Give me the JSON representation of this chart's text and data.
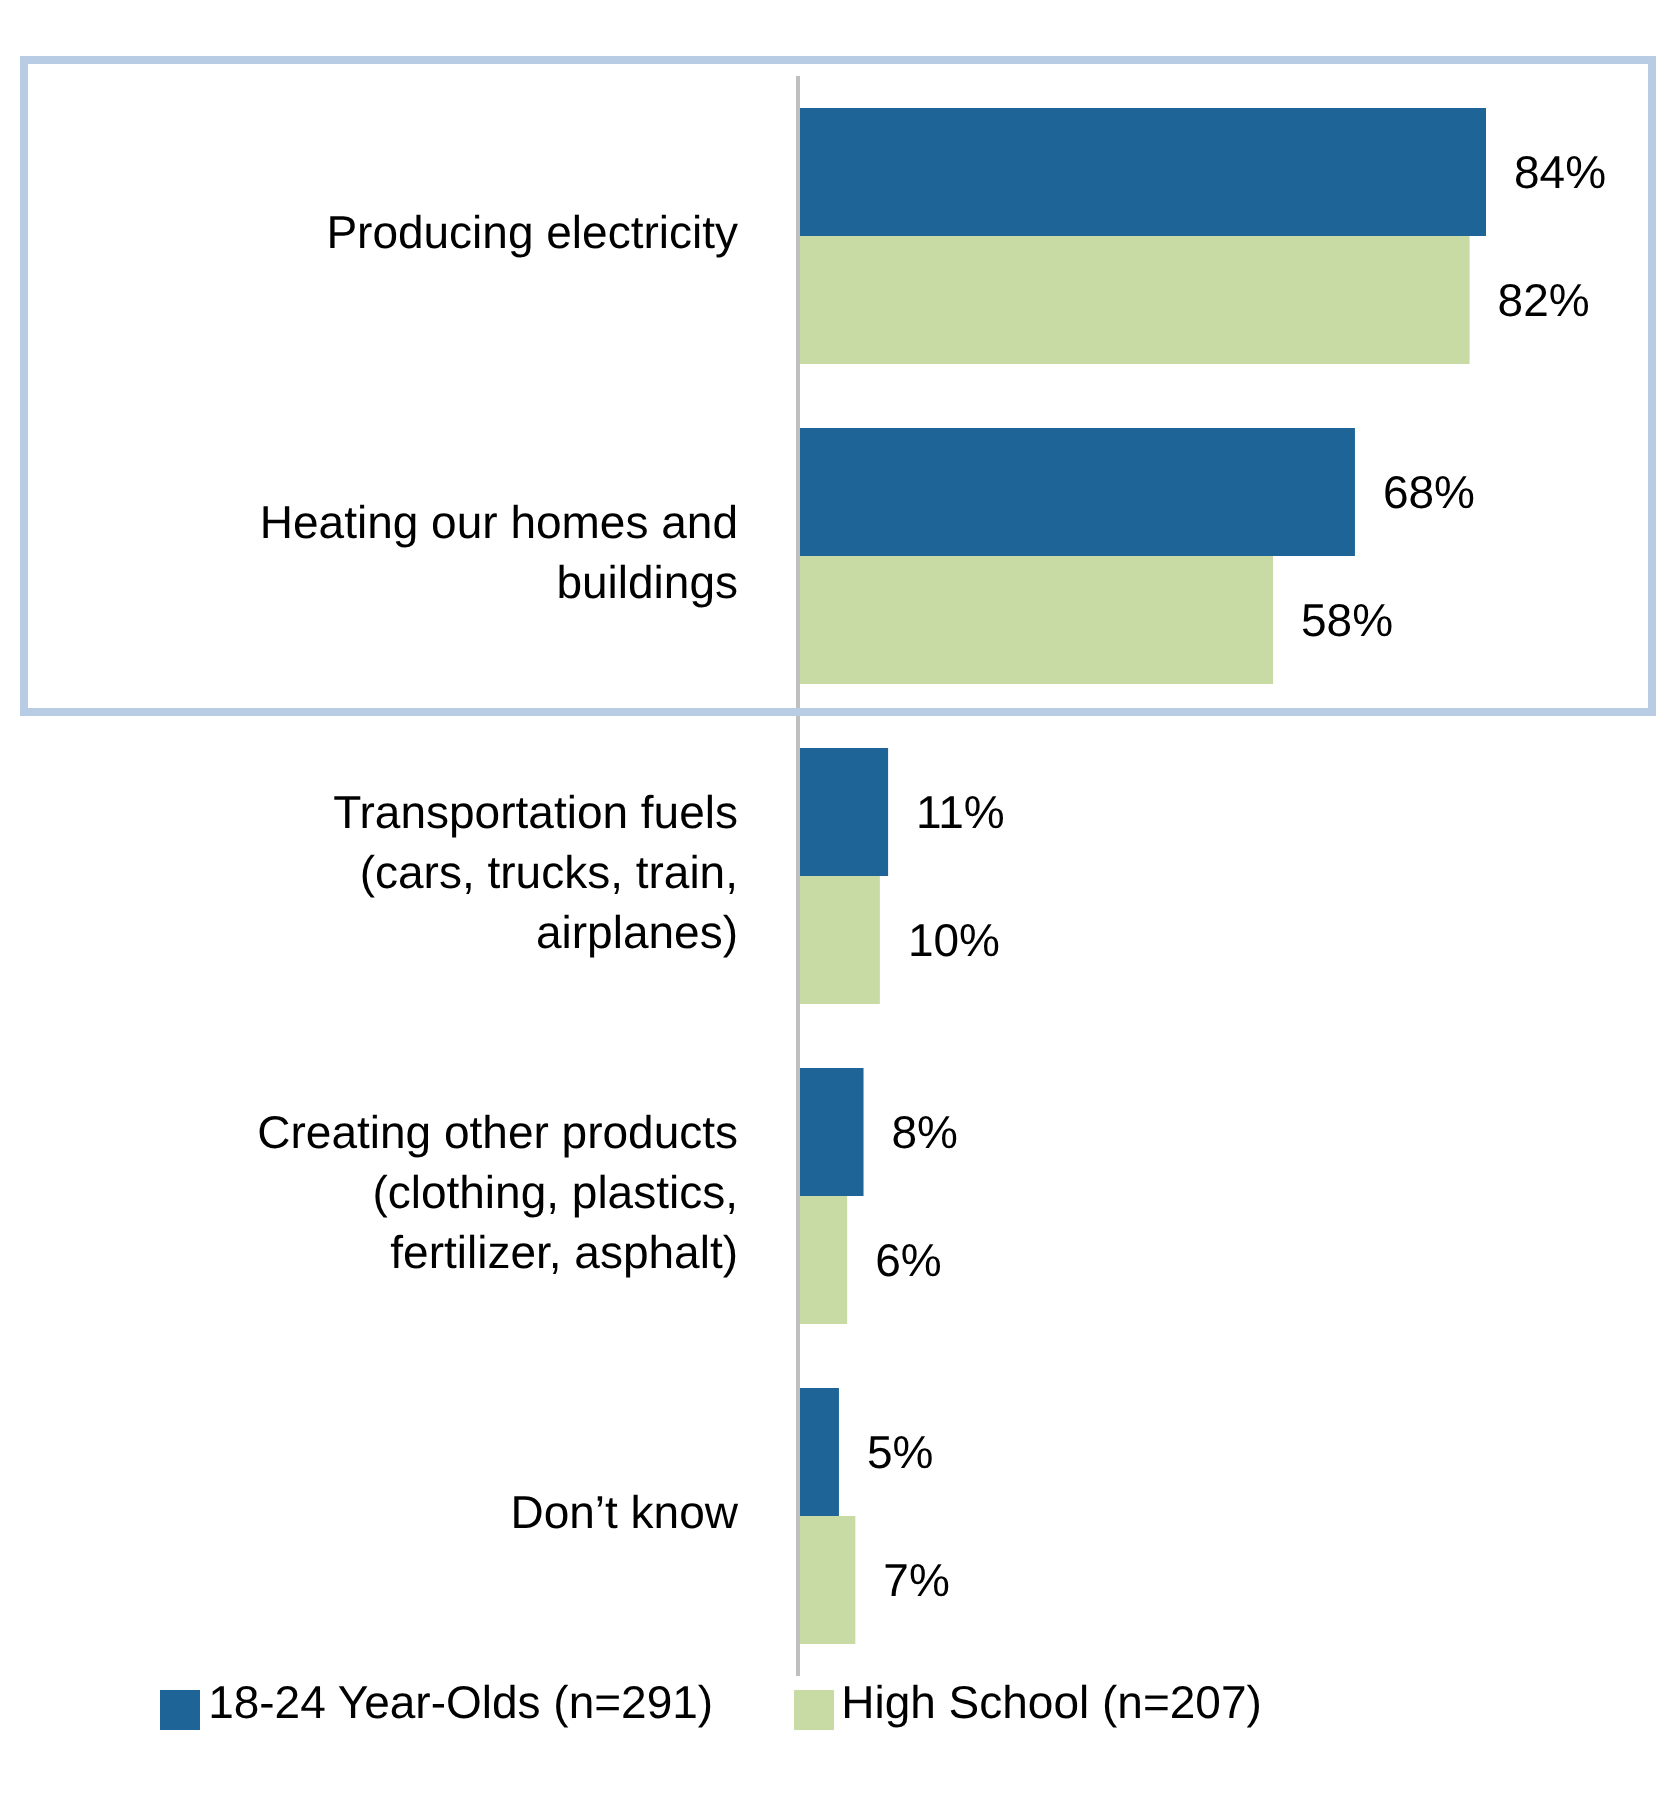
{
  "chart_data": {
    "type": "bar",
    "orientation": "horizontal",
    "categories": [
      "Producing electricity",
      "Heating our homes and buildings",
      "Transportation fuels (cars, trucks, train, airplanes)",
      "Creating other products (clothing, plastics, fertilizer, asphalt)",
      "Don’t know"
    ],
    "series": [
      {
        "name": "18-24 Year-Olds (n=291)",
        "color": "#1f6496",
        "values": [
          84,
          68,
          11,
          8,
          5
        ],
        "value_labels": [
          "84%",
          "68%",
          "11%",
          "8%",
          "5%"
        ]
      },
      {
        "name": "High School (n=207)",
        "color": "#c9dba4",
        "values": [
          82,
          58,
          10,
          6,
          7
        ],
        "value_labels": [
          "82%",
          "58%",
          "10%",
          "6%",
          "7%"
        ]
      }
    ],
    "legend": "bottom",
    "grid": false
  }
}
